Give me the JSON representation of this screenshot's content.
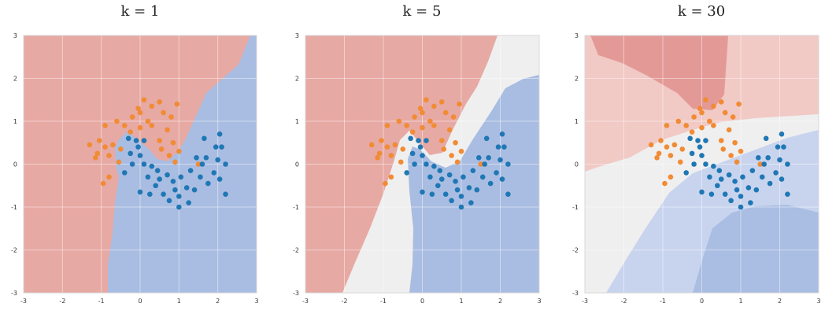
{
  "figure": {
    "background": "#ffffff"
  },
  "chart_data": [
    {
      "type": "scatter",
      "title": "k = 1",
      "xlim": [
        -3,
        3
      ],
      "ylim": [
        -3,
        3
      ],
      "xticks": [
        "-3",
        "-2",
        "-1",
        "0",
        "1",
        "2",
        "3"
      ],
      "yticks": [
        "3",
        "2",
        "1",
        "0",
        "-1",
        "-2",
        "-3"
      ],
      "grid": true,
      "region_colors": {
        "orange_class": "#e7a9a3",
        "blue_class": "#a9bde2",
        "neutral": "#efefef"
      },
      "series": [
        {
          "color": "#f18b34",
          "points": [
            [
              -1.3,
              0.45
            ],
            [
              -1.05,
              0.55
            ],
            [
              -1.1,
              0.25
            ],
            [
              -0.9,
              0.4
            ],
            [
              -0.7,
              0.45
            ],
            [
              -0.5,
              0.35
            ],
            [
              -0.8,
              0.2
            ],
            [
              -0.55,
              0.05
            ],
            [
              -0.6,
              1.0
            ],
            [
              -0.4,
              0.9
            ],
            [
              -0.2,
              1.1
            ],
            [
              0.0,
              1.2
            ],
            [
              0.1,
              1.5
            ],
            [
              0.3,
              1.35
            ],
            [
              0.5,
              1.45
            ],
            [
              0.6,
              1.2
            ],
            [
              0.8,
              1.1
            ],
            [
              0.7,
              0.8
            ],
            [
              0.5,
              0.55
            ],
            [
              0.55,
              0.35
            ],
            [
              0.75,
              0.2
            ],
            [
              0.9,
              0.05
            ],
            [
              1.0,
              0.3
            ],
            [
              0.85,
              0.5
            ],
            [
              0.3,
              0.9
            ],
            [
              0.0,
              0.85
            ],
            [
              -0.25,
              0.75
            ],
            [
              -0.9,
              0.9
            ],
            [
              -0.95,
              -0.45
            ],
            [
              -0.8,
              -0.3
            ],
            [
              -1.15,
              0.15
            ],
            [
              1.5,
              0.0
            ],
            [
              0.95,
              1.4
            ],
            [
              -0.05,
              1.3
            ],
            [
              0.2,
              1.0
            ]
          ]
        },
        {
          "color": "#1f77b4",
          "points": [
            [
              -0.3,
              0.6
            ],
            [
              -0.1,
              0.55
            ],
            [
              0.1,
              0.55
            ],
            [
              -0.25,
              0.25
            ],
            [
              -0.2,
              0.0
            ],
            [
              -0.4,
              -0.2
            ],
            [
              0.0,
              0.2
            ],
            [
              0.1,
              0.0
            ],
            [
              0.2,
              -0.3
            ],
            [
              0.3,
              -0.05
            ],
            [
              0.4,
              -0.5
            ],
            [
              0.5,
              -0.35
            ],
            [
              0.6,
              -0.7
            ],
            [
              0.7,
              -0.25
            ],
            [
              0.85,
              -0.4
            ],
            [
              0.9,
              -0.6
            ],
            [
              1.0,
              -0.75
            ],
            [
              1.05,
              -0.3
            ],
            [
              1.2,
              -0.55
            ],
            [
              1.25,
              -0.9
            ],
            [
              1.3,
              -0.15
            ],
            [
              1.4,
              -0.6
            ],
            [
              1.55,
              -0.3
            ],
            [
              1.6,
              0.0
            ],
            [
              1.7,
              0.15
            ],
            [
              1.75,
              -0.45
            ],
            [
              1.9,
              -0.2
            ],
            [
              2.0,
              0.1
            ],
            [
              2.05,
              -0.35
            ],
            [
              2.1,
              0.4
            ],
            [
              2.2,
              0.0
            ],
            [
              2.2,
              -0.7
            ],
            [
              1.65,
              0.6
            ],
            [
              2.05,
              0.7
            ],
            [
              1.95,
              0.4
            ],
            [
              0.0,
              -0.65
            ],
            [
              0.25,
              -0.7
            ],
            [
              1.0,
              -1.0
            ],
            [
              0.75,
              -0.85
            ],
            [
              1.45,
              0.15
            ],
            [
              -0.05,
              0.4
            ],
            [
              0.45,
              -0.15
            ]
          ]
        }
      ]
    },
    {
      "type": "scatter",
      "title": "k = 5",
      "xlim": [
        -3,
        3
      ],
      "ylim": [
        -3,
        3
      ],
      "xticks": [
        "-3",
        "-2",
        "-1",
        "0",
        "1",
        "2",
        "3"
      ],
      "yticks": [
        "3",
        "2",
        "1",
        "0",
        "-1",
        "-2",
        "-3"
      ],
      "grid": true,
      "region_colors": {
        "orange_class": "#e7a9a3",
        "blue_class": "#a9bde2",
        "neutral": "#efefef"
      },
      "series": [
        {
          "color": "#f18b34",
          "points": [
            [
              -1.3,
              0.45
            ],
            [
              -1.05,
              0.55
            ],
            [
              -1.1,
              0.25
            ],
            [
              -0.9,
              0.4
            ],
            [
              -0.7,
              0.45
            ],
            [
              -0.5,
              0.35
            ],
            [
              -0.8,
              0.2
            ],
            [
              -0.55,
              0.05
            ],
            [
              -0.6,
              1.0
            ],
            [
              -0.4,
              0.9
            ],
            [
              -0.2,
              1.1
            ],
            [
              0.0,
              1.2
            ],
            [
              0.1,
              1.5
            ],
            [
              0.3,
              1.35
            ],
            [
              0.5,
              1.45
            ],
            [
              0.6,
              1.2
            ],
            [
              0.8,
              1.1
            ],
            [
              0.7,
              0.8
            ],
            [
              0.5,
              0.55
            ],
            [
              0.55,
              0.35
            ],
            [
              0.75,
              0.2
            ],
            [
              0.9,
              0.05
            ],
            [
              1.0,
              0.3
            ],
            [
              0.85,
              0.5
            ],
            [
              0.3,
              0.9
            ],
            [
              0.0,
              0.85
            ],
            [
              -0.25,
              0.75
            ],
            [
              -0.9,
              0.9
            ],
            [
              -0.95,
              -0.45
            ],
            [
              -0.8,
              -0.3
            ],
            [
              -1.15,
              0.15
            ],
            [
              1.5,
              0.0
            ],
            [
              0.95,
              1.4
            ],
            [
              -0.05,
              1.3
            ],
            [
              0.2,
              1.0
            ]
          ]
        },
        {
          "color": "#1f77b4",
          "points": [
            [
              -0.3,
              0.6
            ],
            [
              -0.1,
              0.55
            ],
            [
              0.1,
              0.55
            ],
            [
              -0.25,
              0.25
            ],
            [
              -0.2,
              0.0
            ],
            [
              -0.4,
              -0.2
            ],
            [
              0.0,
              0.2
            ],
            [
              0.1,
              0.0
            ],
            [
              0.2,
              -0.3
            ],
            [
              0.3,
              -0.05
            ],
            [
              0.4,
              -0.5
            ],
            [
              0.5,
              -0.35
            ],
            [
              0.6,
              -0.7
            ],
            [
              0.7,
              -0.25
            ],
            [
              0.85,
              -0.4
            ],
            [
              0.9,
              -0.6
            ],
            [
              1.0,
              -0.75
            ],
            [
              1.05,
              -0.3
            ],
            [
              1.2,
              -0.55
            ],
            [
              1.25,
              -0.9
            ],
            [
              1.3,
              -0.15
            ],
            [
              1.4,
              -0.6
            ],
            [
              1.55,
              -0.3
            ],
            [
              1.6,
              0.0
            ],
            [
              1.7,
              0.15
            ],
            [
              1.75,
              -0.45
            ],
            [
              1.9,
              -0.2
            ],
            [
              2.0,
              0.1
            ],
            [
              2.05,
              -0.35
            ],
            [
              2.1,
              0.4
            ],
            [
              2.2,
              0.0
            ],
            [
              2.2,
              -0.7
            ],
            [
              1.65,
              0.6
            ],
            [
              2.05,
              0.7
            ],
            [
              1.95,
              0.4
            ],
            [
              0.0,
              -0.65
            ],
            [
              0.25,
              -0.7
            ],
            [
              1.0,
              -1.0
            ],
            [
              0.75,
              -0.85
            ],
            [
              1.45,
              0.15
            ],
            [
              -0.05,
              0.4
            ],
            [
              0.45,
              -0.15
            ]
          ]
        }
      ]
    },
    {
      "type": "scatter",
      "title": "k = 30",
      "xlim": [
        -3,
        3
      ],
      "ylim": [
        -3,
        3
      ],
      "xticks": [
        "-3",
        "-2",
        "-1",
        "0",
        "1",
        "2",
        "3"
      ],
      "yticks": [
        "3",
        "2",
        "1",
        "0",
        "-1",
        "-2",
        "-3"
      ],
      "grid": true,
      "region_colors": {
        "orange_class": "#e7a9a3",
        "blue_class": "#a9bde2",
        "neutral": "#efefef"
      },
      "series": [
        {
          "color": "#f18b34",
          "points": [
            [
              -1.3,
              0.45
            ],
            [
              -1.05,
              0.55
            ],
            [
              -1.1,
              0.25
            ],
            [
              -0.9,
              0.4
            ],
            [
              -0.7,
              0.45
            ],
            [
              -0.5,
              0.35
            ],
            [
              -0.8,
              0.2
            ],
            [
              -0.55,
              0.05
            ],
            [
              -0.6,
              1.0
            ],
            [
              -0.4,
              0.9
            ],
            [
              -0.2,
              1.1
            ],
            [
              0.0,
              1.2
            ],
            [
              0.1,
              1.5
            ],
            [
              0.3,
              1.35
            ],
            [
              0.5,
              1.45
            ],
            [
              0.6,
              1.2
            ],
            [
              0.8,
              1.1
            ],
            [
              0.7,
              0.8
            ],
            [
              0.5,
              0.55
            ],
            [
              0.55,
              0.35
            ],
            [
              0.75,
              0.2
            ],
            [
              0.9,
              0.05
            ],
            [
              1.0,
              0.3
            ],
            [
              0.85,
              0.5
            ],
            [
              0.3,
              0.9
            ],
            [
              0.0,
              0.85
            ],
            [
              -0.25,
              0.75
            ],
            [
              -0.9,
              0.9
            ],
            [
              -0.95,
              -0.45
            ],
            [
              -0.8,
              -0.3
            ],
            [
              -1.15,
              0.15
            ],
            [
              1.5,
              0.0
            ],
            [
              0.95,
              1.4
            ],
            [
              -0.05,
              1.3
            ],
            [
              0.2,
              1.0
            ]
          ]
        },
        {
          "color": "#1f77b4",
          "points": [
            [
              -0.3,
              0.6
            ],
            [
              -0.1,
              0.55
            ],
            [
              0.1,
              0.55
            ],
            [
              -0.25,
              0.25
            ],
            [
              -0.2,
              0.0
            ],
            [
              -0.4,
              -0.2
            ],
            [
              0.0,
              0.2
            ],
            [
              0.1,
              0.0
            ],
            [
              0.2,
              -0.3
            ],
            [
              0.3,
              -0.05
            ],
            [
              0.4,
              -0.5
            ],
            [
              0.5,
              -0.35
            ],
            [
              0.6,
              -0.7
            ],
            [
              0.7,
              -0.25
            ],
            [
              0.85,
              -0.4
            ],
            [
              0.9,
              -0.6
            ],
            [
              1.0,
              -0.75
            ],
            [
              1.05,
              -0.3
            ],
            [
              1.2,
              -0.55
            ],
            [
              1.25,
              -0.9
            ],
            [
              1.3,
              -0.15
            ],
            [
              1.4,
              -0.6
            ],
            [
              1.55,
              -0.3
            ],
            [
              1.6,
              0.0
            ],
            [
              1.7,
              0.15
            ],
            [
              1.75,
              -0.45
            ],
            [
              1.9,
              -0.2
            ],
            [
              2.0,
              0.1
            ],
            [
              2.05,
              -0.35
            ],
            [
              2.1,
              0.4
            ],
            [
              2.2,
              0.0
            ],
            [
              2.2,
              -0.7
            ],
            [
              1.65,
              0.6
            ],
            [
              2.05,
              0.7
            ],
            [
              1.95,
              0.4
            ],
            [
              0.0,
              -0.65
            ],
            [
              0.25,
              -0.7
            ],
            [
              1.0,
              -1.0
            ],
            [
              0.75,
              -0.85
            ],
            [
              1.45,
              0.15
            ],
            [
              -0.05,
              0.4
            ],
            [
              0.45,
              -0.15
            ]
          ]
        }
      ]
    }
  ]
}
